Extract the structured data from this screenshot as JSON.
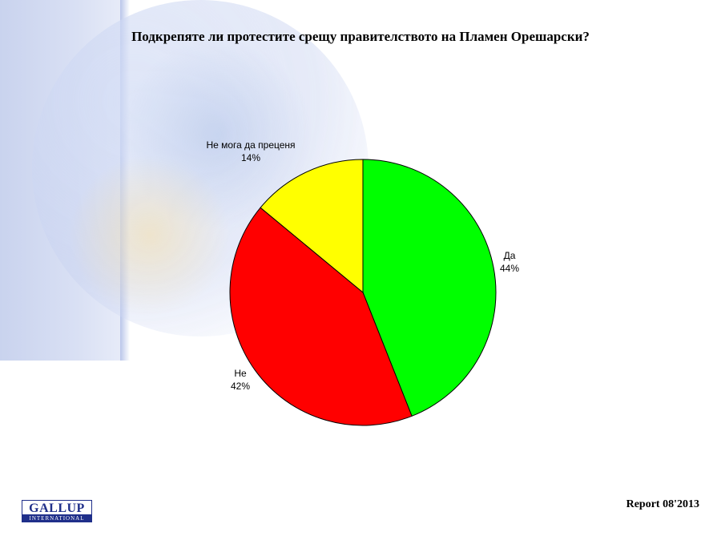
{
  "title": "Подкрепяте ли протестите срещу правителството на Пламен Орешарски?",
  "chart_data": {
    "type": "pie",
    "title": "Подкрепяте ли протестите срещу правителството на Пламен Орешарски?",
    "slices": [
      {
        "label": "Да",
        "value": 44,
        "value_label": "44%",
        "color": "#00ff00"
      },
      {
        "label": "Не",
        "value": 42,
        "value_label": "42%",
        "color": "#ff0000"
      },
      {
        "label": "Не мога да преценя",
        "value": 14,
        "value_label": "14%",
        "color": "#ffff00"
      }
    ]
  },
  "logo": {
    "main": "GALLUP",
    "sub": "INTERNATIONAL"
  },
  "report": "Report 08'2013"
}
